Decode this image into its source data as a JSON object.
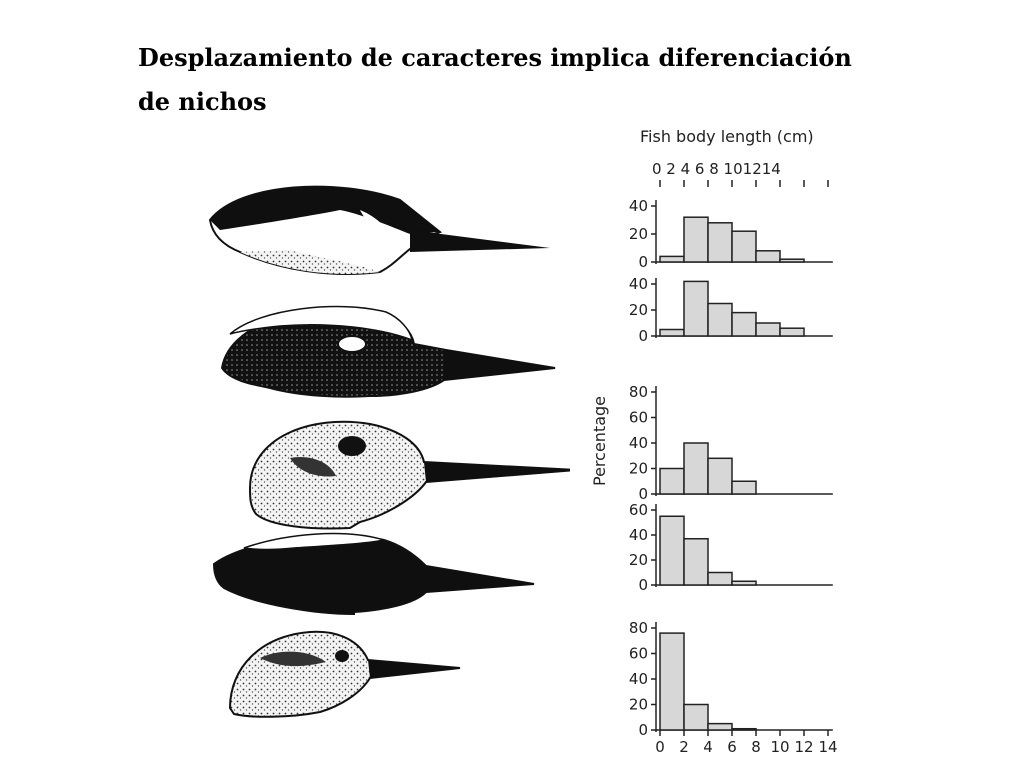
{
  "slide": {
    "title_line1": "Desplazamiento de caracteres implica diferenciación",
    "title_line2": "de nichos"
  },
  "figure": {
    "bird_heads": [
      {
        "name": "kingfisher-head-1"
      },
      {
        "name": "kingfisher-head-2"
      },
      {
        "name": "kingfisher-head-3"
      },
      {
        "name": "kingfisher-head-4"
      },
      {
        "name": "kingfisher-head-5"
      }
    ]
  },
  "chart_data": {
    "type": "bar",
    "xlabel": "Fish body length (cm)",
    "ylabel": "Percentage",
    "x_ticks": [
      "0",
      "2",
      "4",
      "6",
      "8",
      "10",
      "12",
      "14"
    ],
    "x_tick_label_text": "0 2 4 6 8 101214",
    "xlim": [
      0,
      14
    ],
    "bins": [
      "0-2",
      "2-4",
      "4-6",
      "6-8",
      "8-10",
      "10-12",
      "12-14"
    ],
    "fill": "#d7d7d7",
    "panels": [
      {
        "values": [
          4,
          32,
          28,
          22,
          8,
          2,
          0
        ],
        "ylim": [
          0,
          40
        ],
        "yticks": [
          "40",
          "20",
          "0"
        ]
      },
      {
        "values": [
          5,
          42,
          25,
          18,
          10,
          6,
          0
        ],
        "ylim": [
          0,
          40
        ],
        "yticks": [
          "40",
          "20",
          "0"
        ]
      },
      {
        "values": [
          20,
          40,
          28,
          10,
          0,
          0,
          0
        ],
        "ylim": [
          0,
          80
        ],
        "yticks": [
          "80",
          "60",
          "40",
          "20",
          "0"
        ]
      },
      {
        "values": [
          55,
          37,
          10,
          3,
          0,
          0,
          0
        ],
        "ylim": [
          0,
          60
        ],
        "yticks": [
          "60",
          "40",
          "20",
          "0"
        ]
      },
      {
        "values": [
          76,
          20,
          5,
          1,
          0,
          0,
          0
        ],
        "ylim": [
          0,
          80
        ],
        "yticks": [
          "80",
          "60",
          "40",
          "20",
          "0"
        ]
      }
    ]
  }
}
